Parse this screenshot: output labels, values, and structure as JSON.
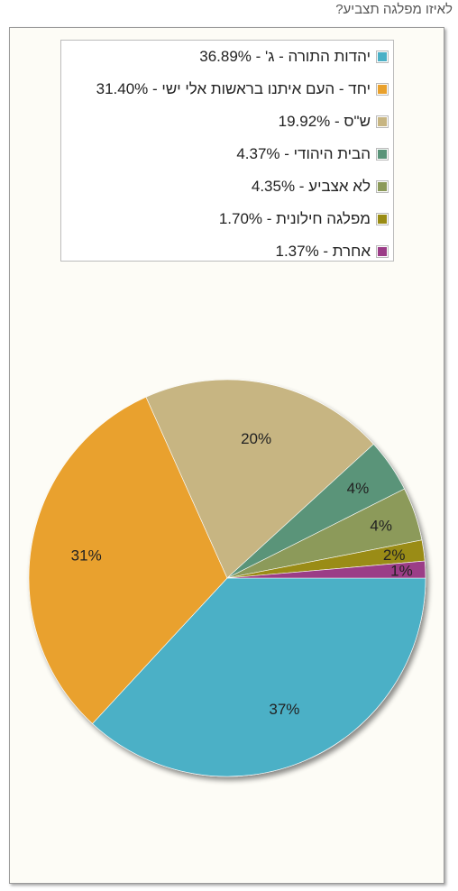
{
  "question": "לאיזו מפלגה תצביע?",
  "chart_data": {
    "type": "pie",
    "title": "לאיזו מפלגה תצביע?",
    "legend_position": "top",
    "slices": [
      {
        "name": "יהדות התורה - ג'",
        "value": 36.89,
        "legend_label": "יהדות התורה - ג' - 36.89%",
        "data_label": "37%",
        "color": "#4bb0c6"
      },
      {
        "name": "יחד - העם איתנו בראשות אלי ישי",
        "value": 31.4,
        "legend_label": "יחד - העם איתנו בראשות אלי ישי - 31.40%",
        "data_label": "31%",
        "color": "#e9a12d"
      },
      {
        "name": "ש\"ס",
        "value": 19.92,
        "legend_label": "ש\"ס - 19.92%",
        "data_label": "20%",
        "color": "#c7b582"
      },
      {
        "name": "הבית היהודי",
        "value": 4.37,
        "legend_label": "הבית היהודי - 4.37%",
        "data_label": "4%",
        "color": "#5a9479"
      },
      {
        "name": "לא אצביע",
        "value": 4.35,
        "legend_label": "לא אצביע - 4.35%",
        "data_label": "4%",
        "color": "#8c9a5a"
      },
      {
        "name": "מפלגה חילונית",
        "value": 1.7,
        "legend_label": "מפלגה חילונית - 1.70%",
        "data_label": "2%",
        "color": "#9a8c14"
      },
      {
        "name": "אחרת",
        "value": 1.37,
        "legend_label": "אחרת - 1.37%",
        "data_label": "1%",
        "color": "#9b3c87"
      }
    ]
  }
}
